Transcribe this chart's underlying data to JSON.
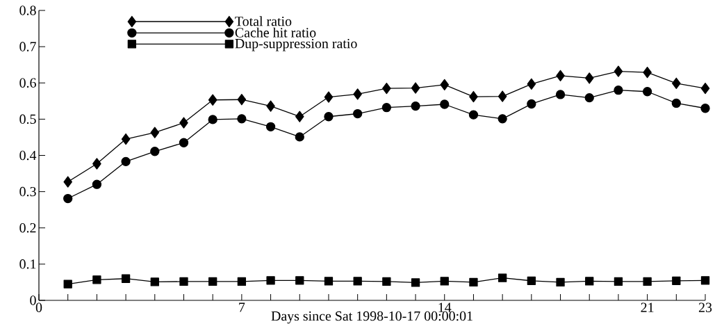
{
  "chart_data": {
    "type": "line",
    "xlabel": "Days since Sat 1998-10-17 00:00:01",
    "x": [
      1,
      2,
      3,
      4,
      5,
      6,
      7,
      8,
      9,
      10,
      11,
      12,
      13,
      14,
      15,
      16,
      17,
      18,
      19,
      20,
      21,
      22,
      23
    ],
    "series": [
      {
        "name": "Total ratio",
        "color": "#000000",
        "marker": "diamond",
        "values": [
          0.327,
          0.377,
          0.445,
          0.463,
          0.49,
          0.553,
          0.554,
          0.536,
          0.507,
          0.561,
          0.569,
          0.585,
          0.586,
          0.595,
          0.562,
          0.563,
          0.597,
          0.62,
          0.613,
          0.632,
          0.629,
          0.599,
          0.585
        ]
      },
      {
        "name": "Cache hit ratio",
        "color": "#000000",
        "marker": "circle",
        "values": [
          0.281,
          0.32,
          0.383,
          0.411,
          0.435,
          0.499,
          0.501,
          0.479,
          0.451,
          0.507,
          0.515,
          0.532,
          0.536,
          0.541,
          0.512,
          0.501,
          0.542,
          0.568,
          0.559,
          0.58,
          0.576,
          0.544,
          0.53
        ]
      },
      {
        "name": "Dup-suppression ratio",
        "color": "#000000",
        "marker": "square",
        "values": [
          0.045,
          0.057,
          0.06,
          0.051,
          0.052,
          0.052,
          0.052,
          0.055,
          0.055,
          0.053,
          0.053,
          0.052,
          0.049,
          0.053,
          0.05,
          0.062,
          0.054,
          0.05,
          0.053,
          0.052,
          0.052,
          0.054,
          0.055
        ]
      }
    ],
    "xlim": [
      0,
      23
    ],
    "ylim": [
      0,
      0.8
    ],
    "xticks": [
      0,
      {
        "value": 1,
        "label": null
      },
      {
        "value": 2,
        "label": null
      },
      {
        "value": 3,
        "label": null
      },
      {
        "value": 4,
        "label": null
      },
      {
        "value": 5,
        "label": null
      },
      {
        "value": 6,
        "label": null
      },
      7,
      {
        "value": 8,
        "label": null
      },
      {
        "value": 9,
        "label": null
      },
      {
        "value": 10,
        "label": null
      },
      {
        "value": 11,
        "label": null
      },
      {
        "value": 12,
        "label": null
      },
      {
        "value": 13,
        "label": null
      },
      14,
      {
        "value": 15,
        "label": null
      },
      {
        "value": 16,
        "label": null
      },
      {
        "value": 17,
        "label": null
      },
      {
        "value": 18,
        "label": null
      },
      {
        "value": 19,
        "label": null
      },
      {
        "value": 20,
        "label": null
      },
      21,
      {
        "value": 22,
        "label": null
      },
      23
    ],
    "yticks": [
      0,
      0.1,
      0.2,
      0.3,
      0.4,
      0.5,
      0.6,
      0.7,
      0.8
    ],
    "grid": false,
    "legend": "top left",
    "line_style": "solid"
  }
}
